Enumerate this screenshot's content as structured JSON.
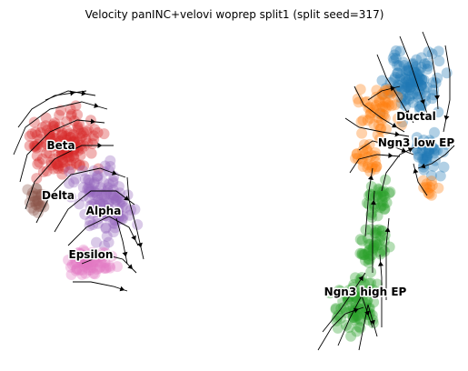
{
  "chart_data": {
    "type": "scatter",
    "title": "Velocity panINC+velovi woprep split1 (split seed=317)",
    "xlabel": "",
    "ylabel": "",
    "axes_visible": false,
    "grid": false,
    "legend": "none (labels drawn on clusters)",
    "overlay": "velocity streamlines with arrowheads",
    "clusters": [
      {
        "name": "Beta",
        "color": "#d62728"
      },
      {
        "name": "Delta",
        "color": "#8c564b"
      },
      {
        "name": "Alpha",
        "color": "#9467bd"
      },
      {
        "name": "Epsilon",
        "color": "#e377c2"
      },
      {
        "name": "Ductal",
        "color": "#1f77b4"
      },
      {
        "name": "Ngn3 low EP",
        "color": "#ff7f0e"
      },
      {
        "name": "Ngn3 high EP",
        "color": "#2ca02c"
      }
    ]
  }
}
